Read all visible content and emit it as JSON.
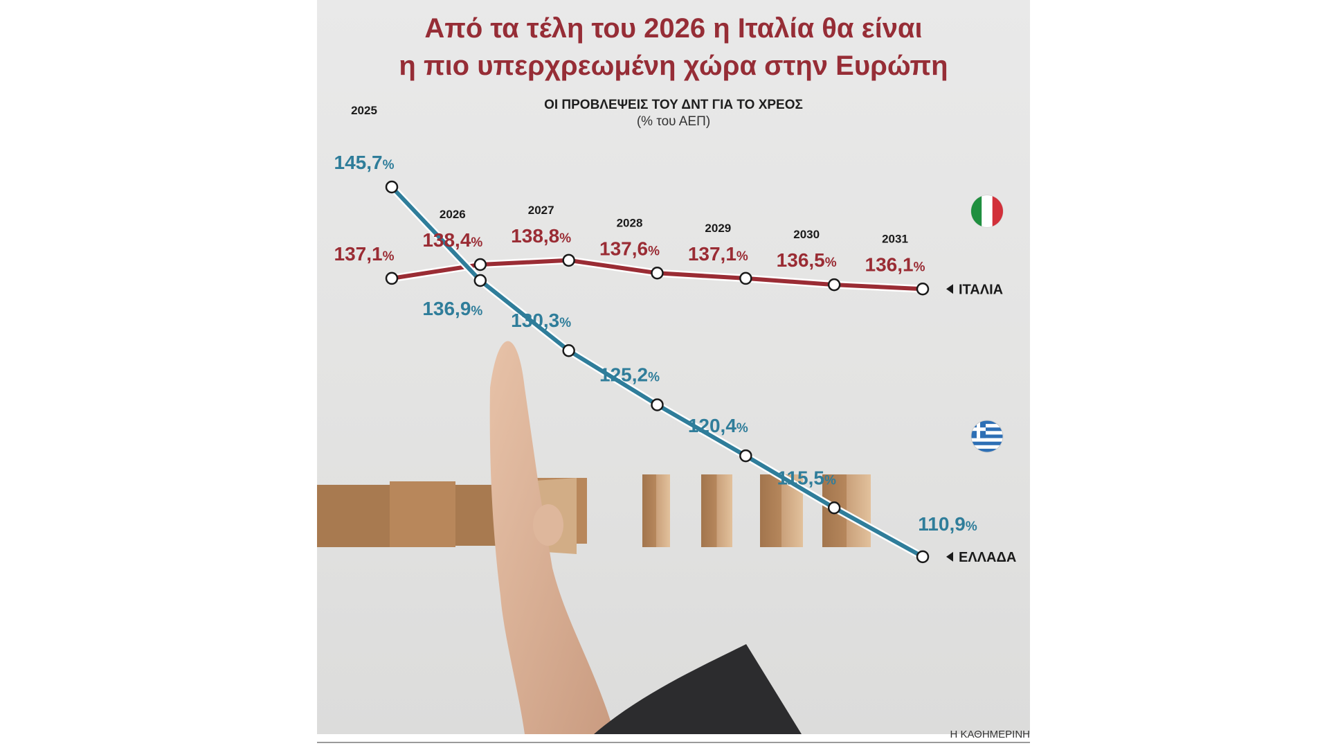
{
  "title_line1": "Από τα τέλη του 2026 η Ιταλία θα είναι",
  "title_line2": "η πιο υπερχρεωμένη χώρα στην Ευρώπη",
  "credit": "Η ΚΑΘΗΜΕΡΙΝΗ",
  "colors": {
    "italy": "#9a2c34",
    "greece": "#2f7d9a",
    "title": "#962d36"
  },
  "chart_data": {
    "type": "line",
    "title": "ΟΙ ΠΡΟΒΛΕΨΕΙΣ ΤΟΥ ΔΝΤ ΓΙΑ ΤΟ ΧΡΕΟΣ",
    "subtitle": "(% του ΑΕΠ)",
    "x": [
      "2025",
      "2026",
      "2027",
      "2028",
      "2029",
      "2030",
      "2031"
    ],
    "series": [
      {
        "name": "ΙΤΑΛΙΑ",
        "values": [
          137.1,
          138.4,
          138.8,
          137.6,
          137.1,
          136.5,
          136.1
        ],
        "labels": [
          "137,1",
          "138,4",
          "138,8",
          "137,6",
          "137,1",
          "136,5",
          "136,1"
        ],
        "color": "#9a2c34",
        "flag_icon": "italy-flag-icon"
      },
      {
        "name": "ΕΛΛΑΔΑ",
        "values": [
          145.7,
          136.9,
          130.3,
          125.2,
          120.4,
          115.5,
          110.9
        ],
        "labels": [
          "145,7",
          "136,9",
          "130,3",
          "125,2",
          "120,4",
          "115,5",
          "110,9"
        ],
        "color": "#2f7d9a",
        "flag_icon": "greece-flag-icon"
      }
    ],
    "value_suffix": "%",
    "grid": false,
    "legend": "end-of-line labels"
  }
}
